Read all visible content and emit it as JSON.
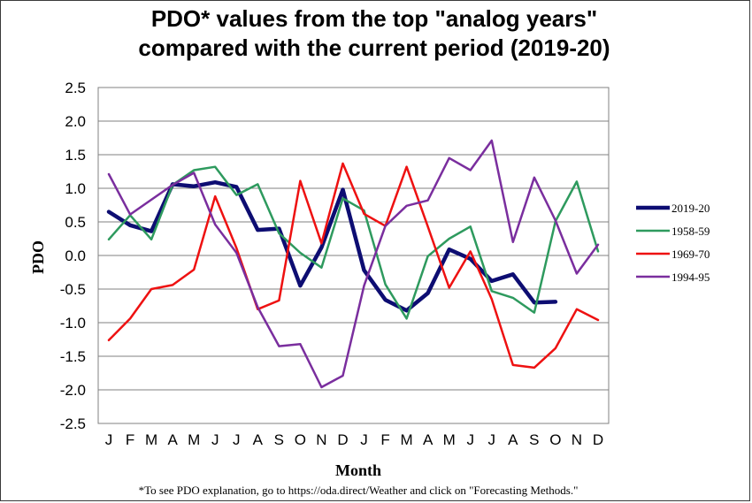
{
  "chart_data": {
    "type": "line",
    "title_lines": [
      "PDO* values from the top \"analog years\"",
      "compared with the current period (2019-20)"
    ],
    "xlabel": "Month",
    "ylabel": "PDO",
    "ylim": [
      -2.5,
      2.5
    ],
    "yticks": [
      "2.5",
      "2.0",
      "1.5",
      "1.0",
      "0.5",
      "0.0",
      "-0.5",
      "-1.0",
      "-1.5",
      "-2.0",
      "-2.5"
    ],
    "ytick_values": [
      2.5,
      2.0,
      1.5,
      1.0,
      0.5,
      0.0,
      -0.5,
      -1.0,
      -1.5,
      -2.0,
      -2.5
    ],
    "categories": [
      "J",
      "F",
      "M",
      "A",
      "M",
      "J",
      "J",
      "A",
      "S",
      "O",
      "N",
      "D",
      "J",
      "F",
      "M",
      "A",
      "M",
      "J",
      "J",
      "A",
      "S",
      "O",
      "N",
      "D"
    ],
    "grid": "horizontal",
    "legend_position": "right",
    "series": [
      {
        "name": "2019-20",
        "color": "#0d0d72",
        "width": 4.5,
        "values": [
          0.65,
          0.45,
          0.36,
          1.06,
          1.03,
          1.09,
          1.02,
          0.38,
          0.4,
          -0.45,
          0.12,
          0.98,
          -0.22,
          -0.66,
          -0.82,
          -0.56,
          0.09,
          -0.05,
          -0.38,
          -0.28,
          -0.7,
          -0.69,
          null,
          null
        ]
      },
      {
        "name": "1958-59",
        "color": "#2e9a5e",
        "width": 2.5,
        "values": [
          0.24,
          0.6,
          0.24,
          1.05,
          1.27,
          1.32,
          0.9,
          1.06,
          0.33,
          0.04,
          -0.18,
          0.85,
          0.67,
          -0.43,
          -0.94,
          -0.01,
          0.25,
          0.43,
          -0.53,
          -0.63,
          -0.85,
          0.51,
          1.1,
          0.06
        ]
      },
      {
        "name": "1969-70",
        "color": "#ee1111",
        "width": 2.5,
        "values": [
          -1.26,
          -0.94,
          -0.5,
          -0.44,
          -0.21,
          0.88,
          0.11,
          -0.8,
          -0.67,
          1.11,
          0.18,
          1.37,
          0.62,
          0.44,
          1.32,
          0.43,
          -0.48,
          0.06,
          -0.65,
          -1.63,
          -1.67,
          -1.38,
          -0.8,
          -0.96
        ]
      },
      {
        "name": "1994-95",
        "color": "#7a2e9e",
        "width": 2.5,
        "values": [
          1.21,
          0.61,
          0.83,
          1.05,
          1.23,
          0.46,
          0.04,
          -0.77,
          -1.35,
          -1.32,
          -1.96,
          -1.79,
          -0.45,
          0.44,
          0.74,
          0.82,
          1.45,
          1.27,
          1.71,
          0.2,
          1.16,
          0.52,
          -0.27,
          0.16
        ]
      }
    ],
    "footnote": "*To see PDO explanation, go to https://oda.direct/Weather and click on \"Forecasting Methods.\""
  }
}
